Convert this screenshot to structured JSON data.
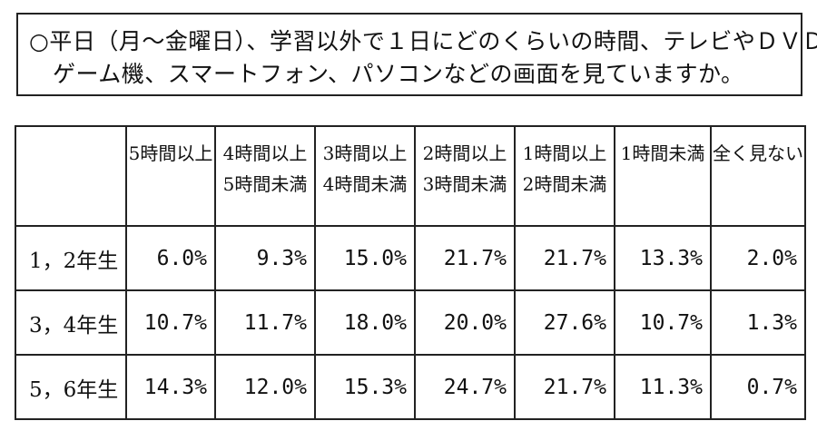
{
  "question": {
    "line1": "○平日（月～金曜日）、学習以外で１日にどのくらいの時間、テレビやＤＶＤ、",
    "line2": "ゲーム機、スマートフォン、パソコンなどの画面を見ていますか。"
  },
  "table": {
    "columns": [
      {
        "line1": "5時間以上",
        "line2": ""
      },
      {
        "line1": "4時間以上",
        "line2": "5時間未満"
      },
      {
        "line1": "3時間以上",
        "line2": "4時間未満"
      },
      {
        "line1": "2時間以上",
        "line2": "3時間未満"
      },
      {
        "line1": "1時間以上",
        "line2": "2時間未満"
      },
      {
        "line1": "1時間未満",
        "line2": ""
      },
      {
        "line1": "全く見ない",
        "line2": ""
      }
    ],
    "rows": [
      {
        "label": "1，2年生",
        "values": [
          "6.0%",
          "9.3%",
          "15.0%",
          "21.7%",
          "21.7%",
          "13.3%",
          "2.0%"
        ]
      },
      {
        "label": "3，4年生",
        "values": [
          "10.7%",
          "11.7%",
          "18.0%",
          "20.0%",
          "27.6%",
          "10.7%",
          "1.3%"
        ]
      },
      {
        "label": "5，6年生",
        "values": [
          "14.3%",
          "12.0%",
          "15.3%",
          "24.7%",
          "21.7%",
          "11.3%",
          "0.7%"
        ]
      }
    ]
  }
}
